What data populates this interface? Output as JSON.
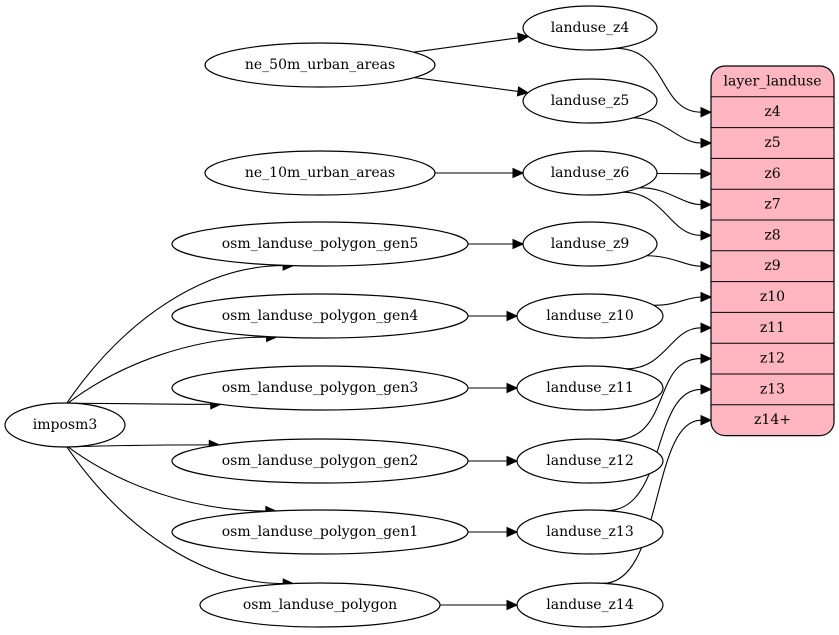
{
  "nodes": {
    "imposm3": "imposm3",
    "ne50": "ne_50m_urban_areas",
    "ne10": "ne_10m_urban_areas",
    "gen5": "osm_landuse_polygon_gen5",
    "gen4": "osm_landuse_polygon_gen4",
    "gen3": "osm_landuse_polygon_gen3",
    "gen2": "osm_landuse_polygon_gen2",
    "gen1": "osm_landuse_polygon_gen1",
    "poly": "osm_landuse_polygon",
    "lz4": "landuse_z4",
    "lz5": "landuse_z5",
    "lz6": "landuse_z6",
    "lz9": "landuse_z9",
    "lz10": "landuse_z10",
    "lz11": "landuse_z11",
    "lz12": "landuse_z12",
    "lz13": "landuse_z13",
    "lz14": "landuse_z14"
  },
  "record": {
    "title": "layer_landuse",
    "fill": "#ffb6c1",
    "ports": [
      "z4",
      "z5",
      "z6",
      "z7",
      "z8",
      "z9",
      "z10",
      "z11",
      "z12",
      "z13",
      "z14+"
    ]
  },
  "edges": [
    [
      "imposm3",
      "gen5"
    ],
    [
      "imposm3",
      "gen4"
    ],
    [
      "imposm3",
      "gen3"
    ],
    [
      "imposm3",
      "gen2"
    ],
    [
      "imposm3",
      "gen1"
    ],
    [
      "imposm3",
      "poly"
    ],
    [
      "ne50",
      "lz4"
    ],
    [
      "ne50",
      "lz5"
    ],
    [
      "ne10",
      "lz6"
    ],
    [
      "gen5",
      "lz9"
    ],
    [
      "gen4",
      "lz10"
    ],
    [
      "gen3",
      "lz11"
    ],
    [
      "gen2",
      "lz12"
    ],
    [
      "gen1",
      "lz13"
    ],
    [
      "poly",
      "lz14"
    ],
    [
      "lz4",
      "port:z4"
    ],
    [
      "lz5",
      "port:z5"
    ],
    [
      "lz6",
      "port:z6"
    ],
    [
      "lz6",
      "port:z7"
    ],
    [
      "lz6",
      "port:z8"
    ],
    [
      "lz9",
      "port:z9"
    ],
    [
      "lz10",
      "port:z10"
    ],
    [
      "lz11",
      "port:z11"
    ],
    [
      "lz12",
      "port:z12"
    ],
    [
      "lz13",
      "port:z13"
    ],
    [
      "lz14",
      "port:z14+"
    ]
  ]
}
